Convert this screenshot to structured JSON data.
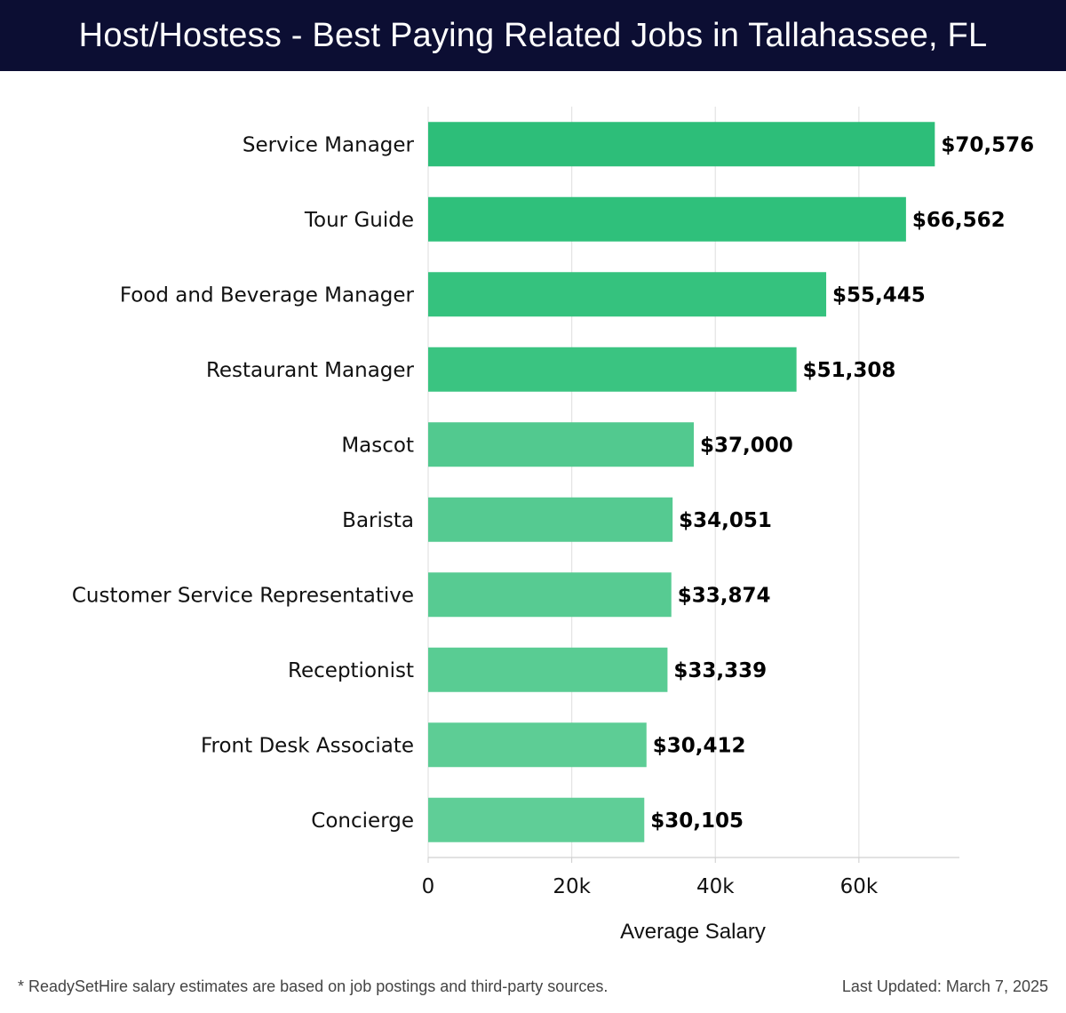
{
  "header": {
    "title": "Host/Hostess - Best Paying Related Jobs in Tallahassee, FL"
  },
  "chart_data": {
    "type": "bar",
    "orientation": "horizontal",
    "title": "Host/Hostess - Best Paying Related Jobs in Tallahassee, FL",
    "xlabel": "Average Salary",
    "ylabel": "",
    "xlim": [
      0,
      74000
    ],
    "x_ticks": [
      0,
      20000,
      40000,
      60000
    ],
    "x_tick_labels": [
      "0",
      "20k",
      "40k",
      "60k"
    ],
    "grid": true,
    "categories": [
      "Service Manager",
      "Tour Guide",
      "Food and Beverage Manager",
      "Restaurant Manager",
      "Mascot",
      "Barista",
      "Customer Service Representative",
      "Receptionist",
      "Front Desk Associate",
      "Concierge"
    ],
    "values": [
      70576,
      66562,
      55445,
      51308,
      37000,
      34051,
      33874,
      33339,
      30412,
      30105
    ],
    "value_labels": [
      "$70,576",
      "$66,562",
      "$55,445",
      "$51,308",
      "$37,000",
      "$34,051",
      "$33,874",
      "$33,339",
      "$30,412",
      "$30,105"
    ],
    "bar_colors": [
      "#2dbe79",
      "#2fc07b",
      "#35c27e",
      "#3ac481",
      "#52c98f",
      "#55ca91",
      "#57cb92",
      "#59cc93",
      "#5dcd95",
      "#5fce97"
    ]
  },
  "footer": {
    "note": "* ReadySetHire salary estimates are based on job postings and third-party sources.",
    "updated": "Last Updated: March 7, 2025"
  }
}
